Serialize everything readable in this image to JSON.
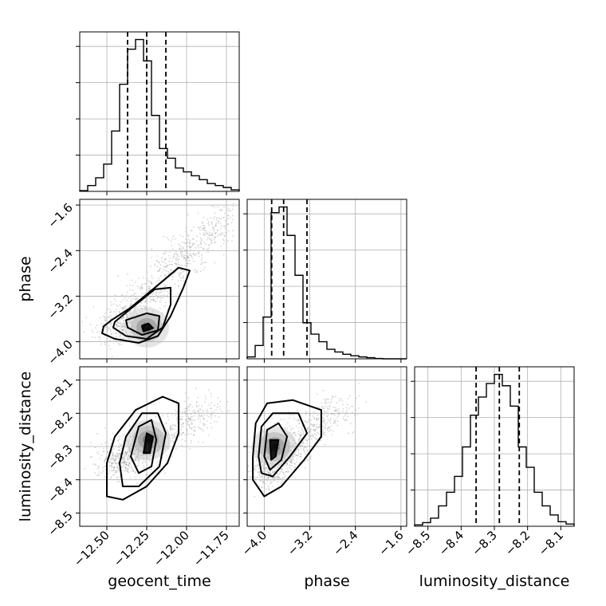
{
  "chart_data": {
    "type": "corner",
    "parameters": [
      "geocent_time",
      "phase",
      "luminosity_distance"
    ],
    "colors": {
      "hist": "#000000",
      "grid": "#b0b0b0",
      "scatter": "#8a8a8a",
      "density_max": "#000000"
    },
    "grid": true,
    "diagonal": [
      {
        "name": "geocent_time",
        "xlim": [
          -12.67,
          -11.67
        ],
        "x_ticks": [
          -12.5,
          -12.25,
          -12.0,
          -11.75
        ],
        "x_tick_labels": [
          "−12.50",
          "−12.25",
          "−12.00",
          "−11.75"
        ],
        "bin_edges": [
          -12.67,
          -12.62,
          -12.57,
          -12.52,
          -12.47,
          -12.42,
          -12.37,
          -12.32,
          -12.27,
          -12.22,
          -12.17,
          -12.12,
          -12.07,
          -12.02,
          -11.97,
          -11.92,
          -11.87,
          -11.82,
          -11.77,
          -11.72,
          -11.67
        ],
        "counts": [
          0.2,
          1.5,
          3.5,
          7.0,
          15.5,
          27.5,
          36.5,
          39.0,
          33.5,
          19.5,
          11.0,
          8.5,
          6.0,
          5.0,
          4.0,
          3.0,
          2.0,
          1.5,
          1.0,
          0.4
        ],
        "quantiles": [
          -12.37,
          -12.25,
          -12.13
        ]
      },
      {
        "name": "phase",
        "xlim": [
          -4.3,
          -1.5
        ],
        "x_ticks": [
          -4.0,
          -3.2,
          -2.4,
          -1.6
        ],
        "x_tick_labels": [
          "−4.0",
          "−3.2",
          "−2.4",
          "−1.6"
        ],
        "bin_edges": [
          -4.3,
          -4.16,
          -4.02,
          -3.88,
          -3.74,
          -3.6,
          -3.46,
          -3.32,
          -3.18,
          -3.04,
          -2.9,
          -2.76,
          -2.62,
          -2.48,
          -2.34,
          -2.2,
          -2.06,
          -1.92,
          -1.78,
          -1.64,
          -1.5
        ],
        "counts": [
          0.5,
          3.5,
          11.0,
          38.5,
          40.0,
          32.5,
          22.0,
          9.5,
          6.5,
          4.5,
          2.5,
          1.8,
          1.2,
          0.8,
          0.5,
          0.3,
          0.1,
          0.0,
          0.0,
          0.0
        ],
        "quantiles": [
          -3.87,
          -3.66,
          -3.25
        ]
      },
      {
        "name": "luminosity_distance",
        "xlim": [
          -8.54,
          -8.06
        ],
        "x_ticks": [
          -8.5,
          -8.4,
          -8.3,
          -8.2,
          -8.1
        ],
        "x_tick_labels": [
          "−8.5",
          "−8.4",
          "−8.3",
          "−8.2",
          "−8.1"
        ],
        "bin_edges": [
          -8.54,
          -8.516,
          -8.492,
          -8.468,
          -8.444,
          -8.42,
          -8.396,
          -8.372,
          -8.348,
          -8.324,
          -8.3,
          -8.276,
          -8.252,
          -8.228,
          -8.204,
          -8.18,
          -8.156,
          -8.132,
          -8.108,
          -8.084,
          -8.06
        ],
        "counts": [
          0.3,
          0.8,
          1.8,
          4.5,
          7.5,
          11.0,
          17.5,
          24.5,
          28.5,
          31.5,
          33.5,
          31.0,
          26.5,
          17.5,
          13.0,
          7.5,
          4.5,
          2.5,
          1.0,
          0.5
        ],
        "quantiles": [
          -8.355,
          -8.285,
          -8.225
        ]
      }
    ],
    "pairs": [
      {
        "x": "geocent_time",
        "y": "phase",
        "xlim": [
          -12.67,
          -11.67
        ],
        "ylim": [
          -4.3,
          -1.5
        ],
        "y_ticks": [
          -4.0,
          -3.2,
          -2.4,
          -1.6
        ],
        "y_tick_labels": [
          "−4.0",
          "−3.2",
          "−2.4",
          "−1.6"
        ],
        "ylabel": "phase",
        "trend": {
          "x": [
            -12.45,
            -12.05,
            -11.75
          ],
          "y": [
            -3.8,
            -2.6,
            -1.8
          ]
        },
        "mode": [
          -12.25,
          -3.75
        ],
        "contours": [
          [
            [
              -12.52,
              -3.73
            ],
            [
              -12.47,
              -3.62
            ],
            [
              -12.35,
              -3.4
            ],
            [
              -12.22,
              -3.1
            ],
            [
              -12.05,
              -2.7
            ],
            [
              -11.98,
              -2.75
            ],
            [
              -12.02,
              -3.05
            ],
            [
              -12.1,
              -3.55
            ],
            [
              -12.18,
              -3.9
            ],
            [
              -12.3,
              -4.02
            ],
            [
              -12.45,
              -3.95
            ],
            [
              -12.53,
              -3.85
            ]
          ],
          [
            [
              -12.45,
              -3.65
            ],
            [
              -12.35,
              -3.42
            ],
            [
              -12.2,
              -3.08
            ],
            [
              -12.1,
              -3.05
            ],
            [
              -12.1,
              -3.35
            ],
            [
              -12.15,
              -3.75
            ],
            [
              -12.25,
              -3.95
            ],
            [
              -12.38,
              -3.9
            ],
            [
              -12.46,
              -3.75
            ]
          ],
          [
            [
              -12.38,
              -3.62
            ],
            [
              -12.25,
              -3.5
            ],
            [
              -12.17,
              -3.55
            ],
            [
              -12.18,
              -3.8
            ],
            [
              -12.28,
              -3.88
            ],
            [
              -12.37,
              -3.75
            ]
          ],
          [
            [
              -12.28,
              -3.72
            ],
            [
              -12.24,
              -3.68
            ],
            [
              -12.21,
              -3.76
            ],
            [
              -12.27,
              -3.82
            ]
          ]
        ]
      },
      {
        "x": "geocent_time",
        "y": "luminosity_distance",
        "xlim": [
          -12.67,
          -11.67
        ],
        "ylim": [
          -8.54,
          -8.06
        ],
        "y_ticks": [
          -8.5,
          -8.4,
          -8.3,
          -8.2,
          -8.1
        ],
        "y_tick_labels": [
          "−8.5",
          "−8.4",
          "−8.3",
          "−8.2",
          "−8.1"
        ],
        "ylabel": "luminosity_distance",
        "xlabel": "geocent_time",
        "trend": {
          "x": [
            -12.45,
            -12.2,
            -11.85
          ],
          "y": [
            -8.35,
            -8.28,
            -8.18
          ]
        },
        "mode": [
          -12.24,
          -8.28
        ],
        "contours": [
          [
            [
              -12.5,
              -8.35
            ],
            [
              -12.45,
              -8.27
            ],
            [
              -12.32,
              -8.19
            ],
            [
              -12.15,
              -8.15
            ],
            [
              -12.05,
              -8.17
            ],
            [
              -12.05,
              -8.26
            ],
            [
              -12.12,
              -8.35
            ],
            [
              -12.25,
              -8.42
            ],
            [
              -12.4,
              -8.46
            ],
            [
              -12.5,
              -8.45
            ]
          ],
          [
            [
              -12.42,
              -8.35
            ],
            [
              -12.38,
              -8.27
            ],
            [
              -12.28,
              -8.2
            ],
            [
              -12.18,
              -8.2
            ],
            [
              -12.13,
              -8.26
            ],
            [
              -12.17,
              -8.36
            ],
            [
              -12.3,
              -8.42
            ],
            [
              -12.4,
              -8.42
            ]
          ],
          [
            [
              -12.35,
              -8.33
            ],
            [
              -12.3,
              -8.24
            ],
            [
              -12.22,
              -8.22
            ],
            [
              -12.19,
              -8.28
            ],
            [
              -12.22,
              -8.36
            ],
            [
              -12.3,
              -8.38
            ]
          ],
          [
            [
              -12.27,
              -8.32
            ],
            [
              -12.25,
              -8.26
            ],
            [
              -12.21,
              -8.27
            ],
            [
              -12.23,
              -8.32
            ]
          ]
        ]
      },
      {
        "x": "phase",
        "y": "luminosity_distance",
        "xlim": [
          -4.3,
          -1.5
        ],
        "ylim": [
          -8.54,
          -8.06
        ],
        "xlabel": "phase",
        "trend": {
          "x": [
            -4.0,
            -3.4,
            -2.6
          ],
          "y": [
            -8.38,
            -8.27,
            -8.17
          ]
        },
        "mode": [
          -3.82,
          -8.3
        ],
        "contours": [
          [
            [
              -4.2,
              -8.33
            ],
            [
              -4.15,
              -8.23
            ],
            [
              -3.95,
              -8.17
            ],
            [
              -3.5,
              -8.16
            ],
            [
              -3.0,
              -8.19
            ],
            [
              -3.0,
              -8.27
            ],
            [
              -3.3,
              -8.34
            ],
            [
              -3.7,
              -8.42
            ],
            [
              -4.0,
              -8.45
            ],
            [
              -4.2,
              -8.4
            ]
          ],
          [
            [
              -4.1,
              -8.33
            ],
            [
              -4.05,
              -8.24
            ],
            [
              -3.85,
              -8.2
            ],
            [
              -3.4,
              -8.2
            ],
            [
              -3.25,
              -8.26
            ],
            [
              -3.55,
              -8.33
            ],
            [
              -3.85,
              -8.39
            ],
            [
              -4.05,
              -8.38
            ]
          ],
          [
            [
              -4.0,
              -8.33
            ],
            [
              -3.95,
              -8.25
            ],
            [
              -3.75,
              -8.23
            ],
            [
              -3.6,
              -8.27
            ],
            [
              -3.7,
              -8.34
            ],
            [
              -3.9,
              -8.37
            ]
          ],
          [
            [
              -3.88,
              -8.34
            ],
            [
              -3.9,
              -8.28
            ],
            [
              -3.75,
              -8.28
            ],
            [
              -3.8,
              -8.33
            ]
          ]
        ]
      }
    ]
  }
}
